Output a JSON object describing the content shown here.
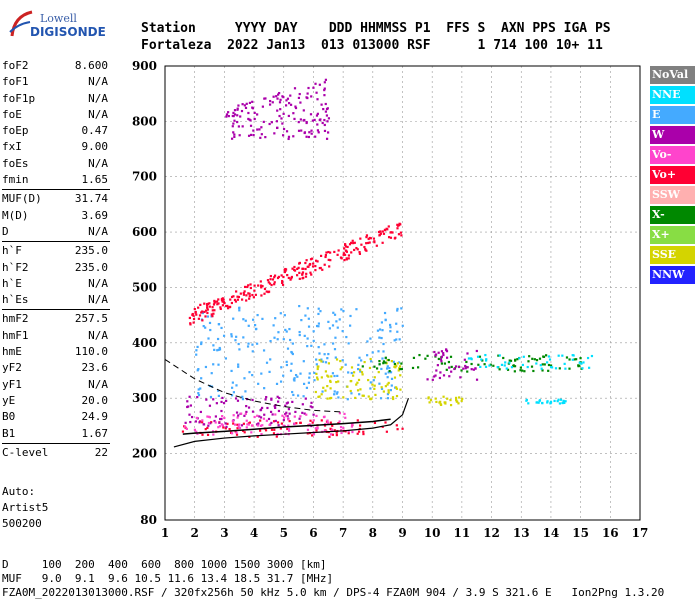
{
  "logo": {
    "line1": "Lowell",
    "line2": "DIGISONDE"
  },
  "header": {
    "line1": "Station     YYYY DAY    DDD HHMMSS P1  FFS S  AXN PPS IGA PS",
    "line2": "Fortaleza  2022 Jan13  013 013000 RSF      1 714 100 10+ 11"
  },
  "params": {
    "group1": [
      {
        "name": "foF2",
        "value": "8.600"
      },
      {
        "name": "foF1",
        "value": "N/A"
      },
      {
        "name": "foF1p",
        "value": "N/A"
      },
      {
        "name": "foE",
        "value": "N/A"
      },
      {
        "name": "foEp",
        "value": "0.47"
      },
      {
        "name": "fxI",
        "value": "9.00"
      },
      {
        "name": "foEs",
        "value": "N/A"
      },
      {
        "name": "fmin",
        "value": "1.65"
      }
    ],
    "group2": [
      {
        "name": "MUF(D)",
        "value": "31.74"
      },
      {
        "name": "M(D)",
        "value": "3.69"
      },
      {
        "name": "D",
        "value": "N/A"
      }
    ],
    "group3": [
      {
        "name": "h`F",
        "value": "235.0"
      },
      {
        "name": "h`F2",
        "value": "235.0"
      },
      {
        "name": "h`E",
        "value": "N/A"
      },
      {
        "name": "h`Es",
        "value": "N/A"
      }
    ],
    "group4": [
      {
        "name": "hmF2",
        "value": "257.5"
      },
      {
        "name": "hmF1",
        "value": "N/A"
      },
      {
        "name": "hmE",
        "value": "110.0"
      },
      {
        "name": "yF2",
        "value": "23.6"
      },
      {
        "name": "yF1",
        "value": "N/A"
      },
      {
        "name": "yE",
        "value": "20.0"
      },
      {
        "name": "B0",
        "value": "24.9"
      },
      {
        "name": "B1",
        "value": "1.67"
      }
    ],
    "group5": [
      {
        "name": "C-level",
        "value": "22"
      }
    ]
  },
  "auto": {
    "line1": "Auto:",
    "line2": "Artist5",
    "line3": "500200"
  },
  "legend": [
    {
      "label": "NoVal",
      "color": "#808080"
    },
    {
      "label": "NNE",
      "color": "#00e0ff"
    },
    {
      "label": "E",
      "color": "#44aaff"
    },
    {
      "label": "W",
      "color": "#aa00aa"
    },
    {
      "label": "Vo-",
      "color": "#ff44cc"
    },
    {
      "label": "Vo+",
      "color": "#ff0033"
    },
    {
      "label": "SSW",
      "color": "#ffb0b0"
    },
    {
      "label": "X-",
      "color": "#008800"
    },
    {
      "label": "X+",
      "color": "#88dd44"
    },
    {
      "label": "SSE",
      "color": "#d4d400"
    },
    {
      "label": "NNW",
      "color": "#2222ff"
    }
  ],
  "footer": {
    "line1": "D     100  200  400  600  800 1000 1500 3000 [km]",
    "line2": "MUF   9.0  9.1  9.6 10.5 11.6 13.4 18.5 31.7 [MHz]",
    "line3": "FZA0M_2022013013000.RSF / 320fx256h 50 kHz 5.0 km / DPS-4 FZA0M 904 / 3.9 S 321.6 E   Ion2Png 1.3.20"
  },
  "chart_data": {
    "type": "scatter",
    "x_range": [
      1,
      17
    ],
    "y_range": [
      80,
      900
    ],
    "x_ticks": [
      1,
      2,
      3,
      4,
      5,
      6,
      7,
      8,
      9,
      10,
      11,
      12,
      13,
      14,
      15,
      16,
      17
    ],
    "y_ticks": [
      80,
      200,
      300,
      400,
      500,
      600,
      700,
      800,
      900
    ],
    "grid": true,
    "trace_h_profile": [
      [
        1.6,
        235
      ],
      [
        2.0,
        237
      ],
      [
        3.0,
        240
      ],
      [
        4.0,
        244
      ],
      [
        5.0,
        248
      ],
      [
        6.0,
        251
      ],
      [
        7.0,
        254
      ],
      [
        8.0,
        258
      ],
      [
        8.6,
        262
      ]
    ],
    "trace_o_fitted": [
      [
        1.3,
        212
      ],
      [
        2,
        222
      ],
      [
        3,
        228
      ],
      [
        4,
        232
      ],
      [
        5,
        235
      ],
      [
        6,
        238
      ],
      [
        7,
        241
      ],
      [
        8,
        246
      ],
      [
        8.6,
        252
      ],
      [
        9.0,
        270
      ],
      [
        9.2,
        300
      ]
    ],
    "trace_dashed": [
      [
        1.0,
        370
      ],
      [
        2.0,
        335
      ],
      [
        3.0,
        310
      ],
      [
        4.0,
        295
      ],
      [
        5.0,
        285
      ],
      [
        6.0,
        278
      ],
      [
        7.0,
        275
      ]
    ],
    "clusters": [
      {
        "label": "Vo+",
        "xmin": 1.5,
        "xmax": 9.0,
        "ymin": 232,
        "ymax": 262
      },
      {
        "label": "W",
        "xmin": 1.6,
        "xmax": 6.0,
        "ymin": 250,
        "ymax": 305
      },
      {
        "label": "Vo-",
        "xmin": 1.6,
        "xmax": 7.5,
        "ymin": 236,
        "ymax": 275
      },
      {
        "label": "E",
        "xmin": 2.0,
        "xmax": 9.0,
        "ymin": 300,
        "ymax": 470
      },
      {
        "label": "SSE",
        "xmin": 6.0,
        "xmax": 9.0,
        "ymin": 300,
        "ymax": 375
      },
      {
        "label": "X-",
        "xmin": 7.5,
        "xmax": 15.0,
        "ymin": 350,
        "ymax": 380
      },
      {
        "label": "W",
        "xmin": 9.8,
        "xmax": 11.5,
        "ymin": 335,
        "ymax": 395
      },
      {
        "label": "NNE",
        "xmin": 11.0,
        "xmax": 15.5,
        "ymin": 355,
        "ymax": 380
      },
      {
        "label": "Vo+",
        "xmin": 1.8,
        "xmax": 9.0,
        "ymin": 448,
        "ymax": 610
      },
      {
        "label": "W",
        "xmin": 3.0,
        "xmax": 6.5,
        "ymin": 770,
        "ymax": 880
      },
      {
        "label": "NNE",
        "xmin": 13.0,
        "xmax": 14.5,
        "ymin": 292,
        "ymax": 300
      },
      {
        "label": "SSE",
        "xmin": 9.8,
        "xmax": 11.0,
        "ymin": 288,
        "ymax": 305
      }
    ]
  }
}
